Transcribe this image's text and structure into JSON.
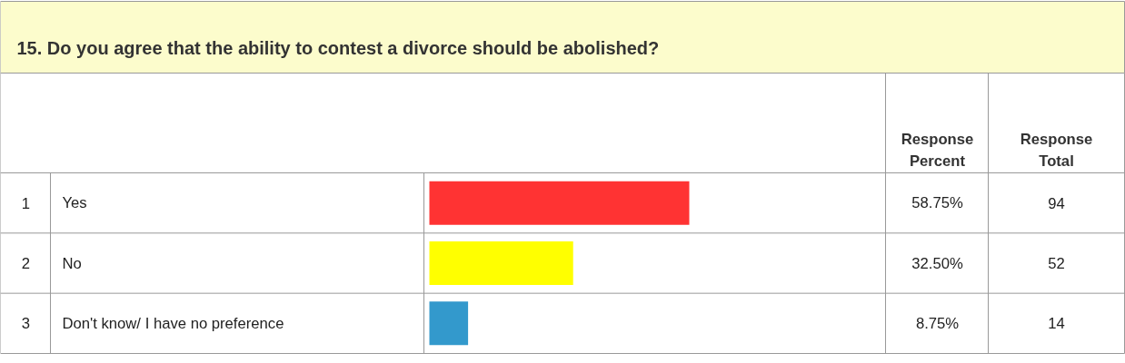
{
  "chart_data": {
    "type": "bar",
    "orientation": "horizontal",
    "title": "15. Do you agree that the ability to contest a divorce should be abolished?",
    "categories": [
      "Yes",
      "No",
      "Don't know/ I have no preference"
    ],
    "values": [
      58.75,
      32.5,
      8.75
    ],
    "colors": [
      "#ff3333",
      "#ffff00",
      "#3399cc"
    ],
    "value_labels": [
      "58.75%",
      "32.50%",
      "8.75%"
    ],
    "annotations": [
      "Response Percent",
      "Response Total",
      "1",
      "2",
      "3",
      "94",
      "52",
      "14"
    ]
  }
}
